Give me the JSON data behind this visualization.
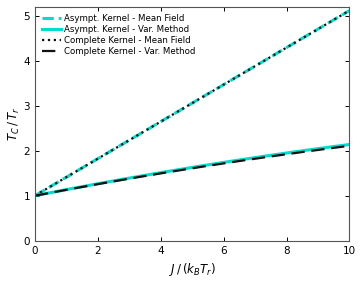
{
  "x_min": 0,
  "x_max": 10,
  "y_min": 0,
  "y_max": 5.2,
  "xlabel": "$J\\,/\\,(k_{B}T_{r})$",
  "ylabel": "$T_{C}\\,/\\,T_{r}$",
  "yticks": [
    0,
    1,
    2,
    3,
    4,
    5
  ],
  "xticks": [
    0,
    2,
    4,
    6,
    8,
    10
  ],
  "color_asympt": "#00DDCC",
  "color_complete": "#111111",
  "legend": [
    "Asympt. Kernel - Mean Field",
    "Asympt. Kernel - Var. Method",
    "Complete Kernel - Mean Field",
    "Complete Kernel - Var. Method"
  ],
  "background": "#ffffff",
  "n_points": 300,
  "upper_slope": 0.412,
  "lower_a": 0.138,
  "lower_b": -0.0024
}
